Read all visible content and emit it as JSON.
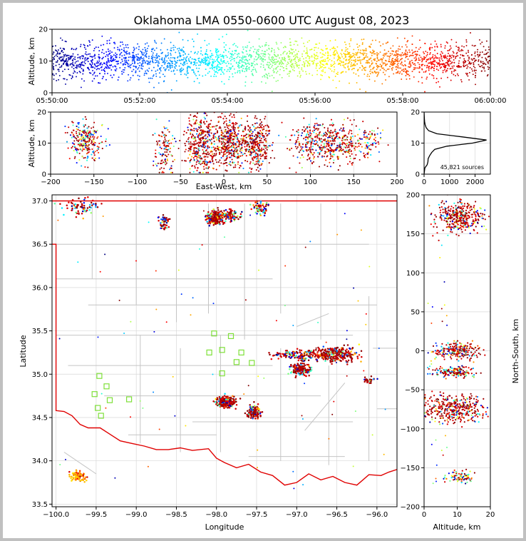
{
  "title": "Oklahoma LMA 0550-0600 UTC August 08, 2023",
  "chart_data": [
    {
      "id": "time_height",
      "type": "scatter",
      "ylabel": "Altitude, km",
      "xlim_minutes": [
        0,
        10
      ],
      "ylim": [
        0,
        20
      ],
      "x_ticks": [
        "05:50:00",
        "05:52:00",
        "05:54:00",
        "05:56:00",
        "05:58:00",
        "06:00:00"
      ],
      "y_ticks": [
        0,
        10,
        20
      ],
      "color_encoding": "time (jet colormap, blue at 05:50 to dark red at 06:00)",
      "altitude_band_km": [
        3,
        17
      ]
    },
    {
      "id": "ew_height",
      "type": "scatter",
      "xlabel": "East-West, km",
      "ylabel": "Altitude, km",
      "xlim": [
        -200,
        200
      ],
      "ylim": [
        0,
        20
      ],
      "x_ticks": [
        -200,
        -150,
        -100,
        -50,
        0,
        50,
        100,
        150,
        200
      ],
      "y_ticks": [
        0,
        10,
        20
      ],
      "clusters": [
        {
          "x": [
            -180,
            -135
          ],
          "alt": [
            3,
            18
          ]
        },
        {
          "x": [
            -85,
            -60
          ],
          "alt": [
            2,
            17
          ]
        },
        {
          "x": [
            -55,
            90
          ],
          "alt": [
            1,
            20
          ]
        },
        {
          "x": [
            70,
            165
          ],
          "alt": [
            2,
            18
          ]
        },
        {
          "x": [
            160,
            185
          ],
          "alt": [
            5,
            15
          ]
        }
      ]
    },
    {
      "id": "altitude_histogram",
      "type": "line",
      "xlim": [
        0,
        2600
      ],
      "ylim": [
        0,
        20
      ],
      "x_ticks": [
        0,
        1000,
        2000
      ],
      "y_ticks": [
        0,
        10,
        20
      ],
      "annotation": "45,821 sources",
      "profile": [
        {
          "alt": 0,
          "count": 0
        },
        {
          "alt": 2,
          "count": 30
        },
        {
          "alt": 3,
          "count": 120
        },
        {
          "alt": 4,
          "count": 150
        },
        {
          "alt": 5,
          "count": 160
        },
        {
          "alt": 6,
          "count": 220
        },
        {
          "alt": 7,
          "count": 300
        },
        {
          "alt": 8,
          "count": 420
        },
        {
          "alt": 9,
          "count": 900
        },
        {
          "alt": 10,
          "count": 1900
        },
        {
          "alt": 11,
          "count": 2450
        },
        {
          "alt": 12,
          "count": 1500
        },
        {
          "alt": 13,
          "count": 500
        },
        {
          "alt": 14,
          "count": 180
        },
        {
          "alt": 15,
          "count": 80
        },
        {
          "alt": 16,
          "count": 40
        },
        {
          "alt": 17,
          "count": 20
        },
        {
          "alt": 18,
          "count": 10
        },
        {
          "alt": 19,
          "count": 5
        },
        {
          "alt": 20,
          "count": 0
        }
      ]
    },
    {
      "id": "plan_view",
      "type": "scatter",
      "xlabel": "Longitude",
      "ylabel": "Latitude",
      "xlim": [
        -100.05,
        -95.75
      ],
      "ylim": [
        33.47,
        37.07
      ],
      "x_ticks": [
        -100.0,
        -99.5,
        -99.0,
        -98.5,
        -98.0,
        -97.5,
        -97.0,
        -96.5,
        -96.0
      ],
      "y_ticks": [
        33.5,
        34.0,
        34.5,
        35.0,
        35.5,
        36.0,
        36.5,
        37.0
      ],
      "stations": [
        {
          "lon": -98.03,
          "lat": 35.47
        },
        {
          "lon": -97.82,
          "lat": 35.44
        },
        {
          "lon": -97.93,
          "lat": 35.28
        },
        {
          "lon": -98.09,
          "lat": 35.25
        },
        {
          "lon": -97.69,
          "lat": 35.25
        },
        {
          "lon": -97.75,
          "lat": 35.14
        },
        {
          "lon": -97.56,
          "lat": 35.13
        },
        {
          "lon": -97.93,
          "lat": 35.01
        },
        {
          "lon": -99.46,
          "lat": 34.98
        },
        {
          "lon": -99.37,
          "lat": 34.86
        },
        {
          "lon": -99.52,
          "lat": 34.77
        },
        {
          "lon": -99.33,
          "lat": 34.7
        },
        {
          "lon": -99.09,
          "lat": 34.71
        },
        {
          "lon": -99.48,
          "lat": 34.61
        },
        {
          "lon": -99.44,
          "lat": 34.52
        }
      ],
      "clusters": [
        {
          "lon": -98.0,
          "lat": 36.8,
          "color": "dark red"
        },
        {
          "lon": -97.88,
          "lat": 34.68,
          "color": "dark red"
        },
        {
          "lon": -97.53,
          "lat": 34.56,
          "color": "dark red"
        },
        {
          "lon": -96.95,
          "lat": 35.05,
          "color": "dark red"
        },
        {
          "lon": -96.55,
          "lat": 35.23,
          "color": "dark red"
        },
        {
          "lon": -99.72,
          "lat": 33.82,
          "color": "yellow"
        }
      ]
    },
    {
      "id": "height_ns",
      "type": "scatter",
      "xlabel": "Altitude, km",
      "ylabel": "North-South, km",
      "xlim": [
        0,
        20
      ],
      "ylim": [
        -200,
        200
      ],
      "x_ticks": [
        0,
        10,
        20
      ],
      "y_ticks": [
        -200,
        -150,
        -100,
        -50,
        0,
        50,
        100,
        150,
        200
      ],
      "clusters": [
        {
          "ns": [
            150,
            200
          ],
          "alt": [
            2,
            20
          ]
        },
        {
          "ns": [
            -10,
            15
          ],
          "alt": [
            1,
            20
          ]
        },
        {
          "ns": [
            -35,
            -20
          ],
          "alt": [
            1,
            18
          ]
        },
        {
          "ns": [
            -95,
            -55
          ],
          "alt": [
            0,
            20
          ]
        },
        {
          "ns": [
            -170,
            -155
          ],
          "alt": [
            4,
            17
          ]
        }
      ]
    }
  ]
}
